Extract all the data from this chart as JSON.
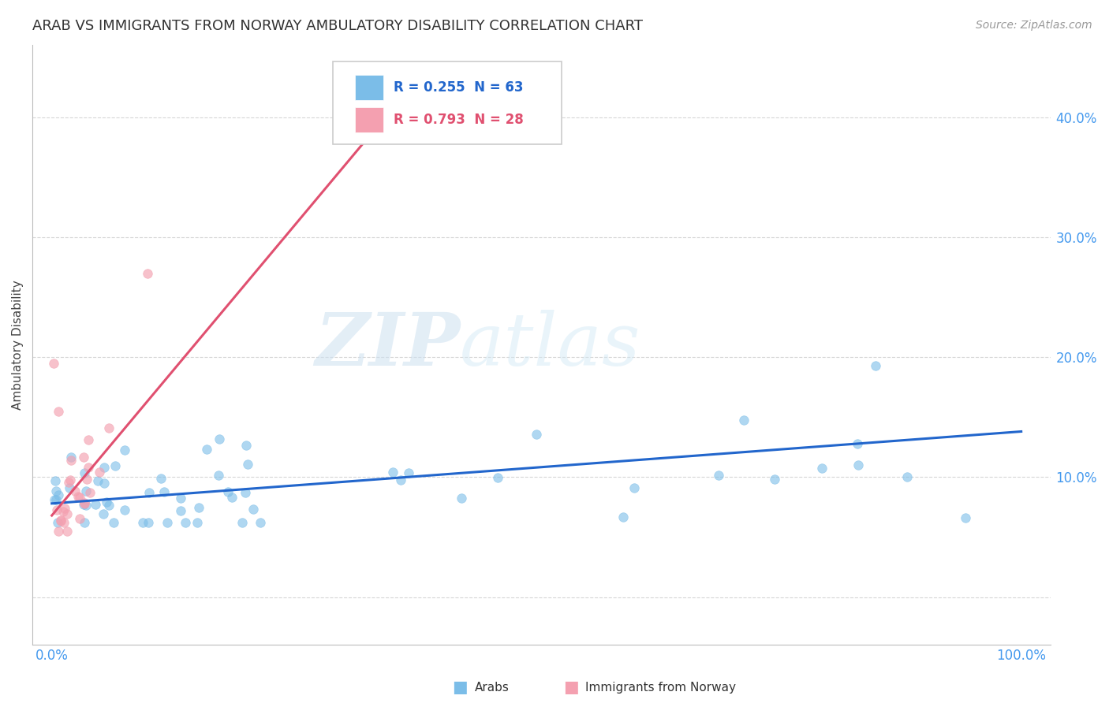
{
  "title": "ARAB VS IMMIGRANTS FROM NORWAY AMBULATORY DISABILITY CORRELATION CHART",
  "source": "Source: ZipAtlas.com",
  "ylabel": "Ambulatory Disability",
  "arab_color": "#7bbde8",
  "norway_color": "#f4a0b0",
  "arab_line_color": "#2266cc",
  "norway_line_color": "#e05070",
  "arab_R": 0.255,
  "arab_N": 63,
  "norway_R": 0.793,
  "norway_N": 28,
  "watermark_zip": "ZIP",
  "watermark_atlas": "atlas",
  "background_color": "#ffffff",
  "grid_color": "#cccccc",
  "ytick_color": "#4499ee",
  "xtick_color": "#4499ee",
  "ytick_vals": [
    0.0,
    0.1,
    0.2,
    0.3,
    0.4
  ],
  "ytick_labels": [
    "",
    "10.0%",
    "20.0%",
    "30.0%",
    "40.0%"
  ],
  "xtick_vals": [
    0.0,
    0.1,
    0.2,
    0.3,
    0.4,
    0.5,
    0.6,
    0.7,
    0.8,
    0.9,
    1.0
  ],
  "xtick_labels": [
    "0.0%",
    "",
    "",
    "",
    "",
    "",
    "",
    "",
    "",
    "",
    "100.0%"
  ],
  "xlim": [
    -0.02,
    1.03
  ],
  "ylim": [
    -0.04,
    0.46
  ],
  "arab_line_x0": 0.0,
  "arab_line_y0": 0.078,
  "arab_line_x1": 1.0,
  "arab_line_y1": 0.138,
  "norway_line_x0": 0.0,
  "norway_line_y0": 0.068,
  "norway_line_x1": 0.38,
  "norway_line_y1": 0.435
}
